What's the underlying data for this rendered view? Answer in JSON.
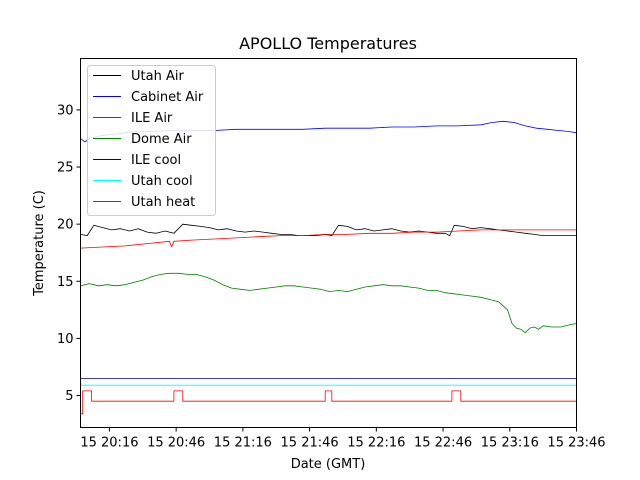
{
  "chart_data": {
    "type": "line",
    "title": "APOLLO Temperatures",
    "xlabel": "Date (GMT)",
    "ylabel": "Temperature (C)",
    "xlim": [
      0,
      223
    ],
    "ylim": [
      2.2,
      34.5
    ],
    "x_unit": "minutes since 15 20:03 GMT",
    "xticks": [
      {
        "value": 13,
        "label": "15 20:16"
      },
      {
        "value": 43,
        "label": "15 20:46"
      },
      {
        "value": 73,
        "label": "15 21:16"
      },
      {
        "value": 103,
        "label": "15 21:46"
      },
      {
        "value": 133,
        "label": "15 22:16"
      },
      {
        "value": 163,
        "label": "15 22:46"
      },
      {
        "value": 193,
        "label": "15 23:16"
      },
      {
        "value": 223,
        "label": "15 23:46"
      }
    ],
    "yticks": [
      {
        "value": 5,
        "label": "5"
      },
      {
        "value": 10,
        "label": "10"
      },
      {
        "value": 15,
        "label": "15"
      },
      {
        "value": 20,
        "label": "20"
      },
      {
        "value": 25,
        "label": "25"
      },
      {
        "value": 30,
        "label": "30"
      }
    ],
    "legend_position": "top-left",
    "series": [
      {
        "name": "Utah Air",
        "color": "#000000",
        "x": [
          0,
          3,
          6,
          10,
          14,
          18,
          22,
          26,
          30,
          34,
          38,
          42,
          46,
          50,
          54,
          58,
          62,
          66,
          70,
          74,
          78,
          82,
          86,
          90,
          94,
          98,
          102,
          106,
          110,
          113,
          116,
          120,
          124,
          128,
          132,
          136,
          140,
          144,
          148,
          152,
          156,
          160,
          164,
          166,
          168,
          172,
          176,
          180,
          184,
          188,
          192,
          196,
          200,
          204,
          208,
          212,
          216,
          220,
          223
        ],
        "y": [
          19.1,
          19.0,
          19.9,
          19.7,
          19.5,
          19.6,
          19.4,
          19.6,
          19.3,
          19.2,
          19.4,
          19.2,
          20.0,
          19.9,
          19.8,
          19.7,
          19.5,
          19.6,
          19.4,
          19.3,
          19.4,
          19.3,
          19.2,
          19.1,
          19.1,
          19.0,
          19.0,
          19.0,
          19.1,
          19.0,
          19.9,
          19.8,
          19.5,
          19.6,
          19.4,
          19.5,
          19.6,
          19.4,
          19.3,
          19.4,
          19.3,
          19.2,
          19.2,
          19.0,
          19.9,
          19.8,
          19.6,
          19.7,
          19.6,
          19.5,
          19.4,
          19.3,
          19.2,
          19.1,
          19.0,
          19.0,
          19.0,
          19.0,
          19.0
        ]
      },
      {
        "name": "Cabinet Air",
        "color": "#0000ff",
        "x": [
          0,
          2,
          4,
          8,
          12,
          16,
          20,
          24,
          30,
          40,
          50,
          60,
          70,
          80,
          90,
          100,
          110,
          120,
          130,
          140,
          150,
          160,
          170,
          180,
          185,
          190,
          195,
          200,
          205,
          210,
          215,
          220,
          223
        ],
        "y": [
          27.5,
          27.2,
          27.5,
          27.7,
          27.8,
          27.9,
          28.0,
          28.1,
          28.1,
          28.2,
          28.2,
          28.2,
          28.3,
          28.3,
          28.3,
          28.3,
          28.4,
          28.4,
          28.4,
          28.5,
          28.5,
          28.6,
          28.6,
          28.7,
          28.9,
          29.0,
          28.9,
          28.6,
          28.4,
          28.3,
          28.2,
          28.1,
          28.0
        ]
      },
      {
        "name": "ILE Air",
        "color": "#ff0000",
        "x": [
          0,
          10,
          20,
          30,
          40,
          41,
          42,
          50,
          60,
          70,
          80,
          90,
          100,
          110,
          120,
          130,
          140,
          150,
          160,
          170,
          180,
          190,
          200,
          210,
          220,
          223
        ],
        "y": [
          17.9,
          18.0,
          18.1,
          18.3,
          18.5,
          18.0,
          18.5,
          18.6,
          18.7,
          18.8,
          18.9,
          19.0,
          19.0,
          19.1,
          19.1,
          19.2,
          19.2,
          19.3,
          19.3,
          19.4,
          19.5,
          19.5,
          19.5,
          19.5,
          19.5,
          19.5
        ]
      },
      {
        "name": "Dome Air",
        "color": "#008000",
        "x": [
          0,
          4,
          8,
          12,
          16,
          20,
          24,
          28,
          32,
          36,
          40,
          44,
          48,
          52,
          56,
          60,
          64,
          68,
          72,
          76,
          80,
          84,
          88,
          92,
          96,
          100,
          104,
          108,
          112,
          116,
          120,
          124,
          128,
          132,
          136,
          140,
          144,
          148,
          152,
          156,
          160,
          164,
          168,
          172,
          176,
          180,
          184,
          188,
          192,
          194,
          196,
          198,
          200,
          202,
          204,
          206,
          208,
          212,
          216,
          220,
          223
        ],
        "y": [
          14.6,
          14.8,
          14.6,
          14.7,
          14.6,
          14.7,
          14.9,
          15.1,
          15.4,
          15.6,
          15.7,
          15.7,
          15.6,
          15.6,
          15.4,
          15.1,
          14.7,
          14.4,
          14.3,
          14.2,
          14.3,
          14.4,
          14.5,
          14.6,
          14.6,
          14.5,
          14.4,
          14.3,
          14.1,
          14.2,
          14.1,
          14.3,
          14.5,
          14.6,
          14.7,
          14.6,
          14.6,
          14.5,
          14.4,
          14.2,
          14.2,
          14.0,
          13.9,
          13.8,
          13.7,
          13.6,
          13.4,
          13.2,
          12.5,
          11.3,
          10.9,
          10.8,
          10.5,
          10.9,
          11.0,
          10.8,
          11.1,
          11.0,
          11.0,
          11.2,
          11.3
        ]
      },
      {
        "name": "ILE cool",
        "color": "#000080",
        "x": [
          0,
          223
        ],
        "y": [
          6.5,
          6.5
        ]
      },
      {
        "name": "Utah cool",
        "color": "#00ffff",
        "x": [
          0,
          223
        ],
        "y": [
          5.9,
          5.9
        ]
      },
      {
        "name": "Utah heat",
        "color": "#ff0000",
        "x": [
          0,
          1,
          1,
          5,
          5,
          42,
          42,
          46,
          46,
          110,
          110,
          113,
          113,
          167,
          167,
          171,
          171,
          223
        ],
        "y": [
          3.4,
          3.4,
          5.4,
          5.4,
          4.5,
          4.5,
          5.4,
          5.4,
          4.5,
          4.5,
          5.4,
          5.4,
          4.5,
          4.5,
          5.4,
          5.4,
          4.5,
          4.5
        ]
      }
    ]
  }
}
